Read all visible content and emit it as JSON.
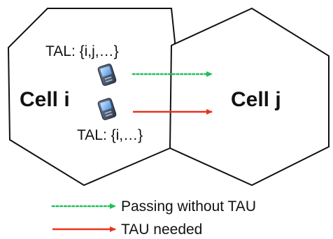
{
  "cells": [
    {
      "label": "Cell i",
      "tal": "TAL: {i,j,…}"
    },
    {
      "label": "Cell j"
    }
  ],
  "devices": [
    {
      "tal": "TAL: {i,…}"
    }
  ],
  "legend": [
    {
      "text": "Passing without TAU",
      "style": "dotted",
      "color": "#1fbf57"
    },
    {
      "text": "TAU needed",
      "style": "solid",
      "color": "#e8321e"
    }
  ],
  "colors": {
    "passing_arrow": "#1fbf57",
    "tau_arrow": "#e8321e",
    "cell_border": "#111111"
  },
  "icons": [
    "mobile-phone-icon"
  ]
}
